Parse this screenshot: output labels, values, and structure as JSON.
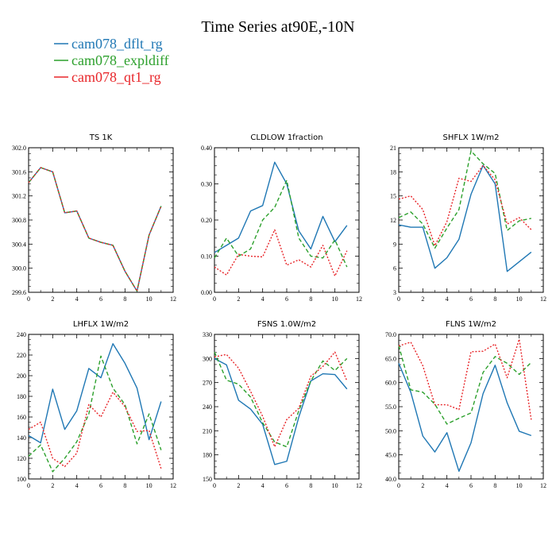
{
  "title": "Time Series at90E,-10N",
  "legend": [
    {
      "name": "cam078_dflt_rg",
      "color": "#1f77b4"
    },
    {
      "name": "cam078_expldiff",
      "color": "#2ca02c"
    },
    {
      "name": "cam078_qt1_rg",
      "color": "#e8262a"
    }
  ],
  "chart_data": [
    {
      "type": "line",
      "title": "TS   1K",
      "xlim": [
        0,
        12
      ],
      "ylim": [
        299.6,
        302.0
      ],
      "x_ticks": [
        0,
        2,
        4,
        6,
        8,
        10,
        12
      ],
      "y_ticks": [
        "299.6",
        "300.0",
        "300.4",
        "300.8",
        "301.2",
        "301.6",
        "302.0"
      ],
      "x": [
        0,
        1,
        2,
        3,
        4,
        5,
        6,
        7,
        8,
        9,
        10,
        11
      ],
      "series": [
        {
          "name": "cam078_dflt_rg",
          "dash": "solid",
          "values": [
            301.42,
            301.67,
            301.6,
            300.92,
            300.95,
            300.5,
            300.43,
            300.38,
            299.95,
            299.62,
            300.55,
            301.03
          ]
        },
        {
          "name": "cam078_expldiff",
          "dash": "dash",
          "values": [
            301.42,
            301.67,
            301.6,
            300.92,
            300.95,
            300.5,
            300.43,
            300.38,
            299.95,
            299.62,
            300.55,
            301.03
          ]
        },
        {
          "name": "cam078_qt1_rg",
          "dash": "dot",
          "values": [
            301.42,
            301.67,
            301.6,
            300.92,
            300.95,
            300.5,
            300.43,
            300.38,
            299.95,
            299.62,
            300.55,
            301.03
          ]
        }
      ]
    },
    {
      "type": "line",
      "title": "CLDLOW   1fraction",
      "xlim": [
        0,
        12
      ],
      "ylim": [
        0.0,
        0.4
      ],
      "x_ticks": [
        0,
        2,
        4,
        6,
        8,
        10,
        12
      ],
      "y_ticks": [
        "0.00",
        "0.10",
        "0.20",
        "0.30",
        "0.40"
      ],
      "x": [
        0,
        1,
        2,
        3,
        4,
        5,
        6,
        7,
        8,
        9,
        10,
        11
      ],
      "series": [
        {
          "name": "cam078_dflt_rg",
          "dash": "solid",
          "values": [
            0.11,
            0.13,
            0.15,
            0.225,
            0.24,
            0.36,
            0.3,
            0.17,
            0.12,
            0.21,
            0.14,
            0.185
          ]
        },
        {
          "name": "cam078_expldiff",
          "dash": "dash",
          "values": [
            0.095,
            0.15,
            0.1,
            0.12,
            0.2,
            0.235,
            0.31,
            0.15,
            0.1,
            0.095,
            0.145,
            0.07
          ]
        },
        {
          "name": "cam078_qt1_rg",
          "dash": "dot",
          "values": [
            0.07,
            0.048,
            0.105,
            0.1,
            0.098,
            0.173,
            0.075,
            0.09,
            0.07,
            0.13,
            0.045,
            0.115
          ]
        }
      ]
    },
    {
      "type": "line",
      "title": "SHFLX   1W/m2",
      "xlim": [
        0,
        12
      ],
      "ylim": [
        3,
        21
      ],
      "x_ticks": [
        0,
        2,
        4,
        6,
        8,
        10,
        12
      ],
      "y_ticks": [
        "3",
        "6",
        "9",
        "12",
        "15",
        "18",
        "21"
      ],
      "x": [
        0,
        1,
        2,
        3,
        4,
        5,
        6,
        7,
        8,
        9,
        10,
        11
      ],
      "series": [
        {
          "name": "cam078_dflt_rg",
          "dash": "solid",
          "values": [
            11.4,
            11.1,
            11.1,
            6.0,
            7.3,
            9.6,
            15.2,
            18.8,
            16.5,
            5.6,
            6.8,
            8.0
          ]
        },
        {
          "name": "cam078_expldiff",
          "dash": "dash",
          "values": [
            12.3,
            13.0,
            11.5,
            8.5,
            11.0,
            13.3,
            20.6,
            19.0,
            17.8,
            10.7,
            11.9,
            12.2
          ]
        },
        {
          "name": "cam078_qt1_rg",
          "dash": "dot",
          "values": [
            14.6,
            15.0,
            13.3,
            8.8,
            11.8,
            17.2,
            16.8,
            18.8,
            17.0,
            11.5,
            12.3,
            10.8
          ]
        }
      ]
    },
    {
      "type": "line",
      "title": "LHFLX   1W/m2",
      "xlim": [
        0,
        12
      ],
      "ylim": [
        100,
        240
      ],
      "x_ticks": [
        0,
        2,
        4,
        6,
        8,
        10,
        12
      ],
      "y_ticks": [
        "100",
        "120",
        "140",
        "160",
        "180",
        "200",
        "220",
        "240"
      ],
      "x": [
        0,
        1,
        2,
        3,
        4,
        5,
        6,
        7,
        8,
        9,
        10,
        11
      ],
      "series": [
        {
          "name": "cam078_dflt_rg",
          "dash": "solid",
          "values": [
            142,
            135,
            187,
            148,
            166,
            207,
            198,
            231,
            212,
            188,
            138,
            175
          ]
        },
        {
          "name": "cam078_expldiff",
          "dash": "dash",
          "values": [
            122,
            133,
            107,
            120,
            136,
            163,
            219,
            188,
            172,
            134,
            163,
            128
          ]
        },
        {
          "name": "cam078_qt1_rg",
          "dash": "dot",
          "values": [
            148,
            155,
            120,
            112,
            125,
            172,
            160,
            184,
            170,
            146,
            147,
            110
          ]
        }
      ]
    },
    {
      "type": "line",
      "title": "FSNS   1.0W/m2",
      "xlim": [
        0,
        12
      ],
      "ylim": [
        150,
        330
      ],
      "x_ticks": [
        0,
        2,
        4,
        6,
        8,
        10,
        12
      ],
      "y_ticks": [
        "150",
        "180",
        "210",
        "240",
        "270",
        "300",
        "330"
      ],
      "x": [
        0,
        1,
        2,
        3,
        4,
        5,
        6,
        7,
        8,
        9,
        10,
        11
      ],
      "series": [
        {
          "name": "cam078_dflt_rg",
          "dash": "solid",
          "values": [
            300,
            292,
            248,
            237,
            218,
            168,
            172,
            227,
            272,
            281,
            280,
            262
          ]
        },
        {
          "name": "cam078_expldiff",
          "dash": "dash",
          "values": [
            308,
            273,
            268,
            252,
            220,
            196,
            190,
            235,
            272,
            297,
            285,
            300
          ]
        },
        {
          "name": "cam078_qt1_rg",
          "dash": "dot",
          "values": [
            302,
            305,
            288,
            259,
            228,
            190,
            224,
            238,
            278,
            290,
            308,
            272
          ]
        }
      ]
    },
    {
      "type": "line",
      "title": "FLNS   1W/m2",
      "xlim": [
        0,
        12
      ],
      "ylim": [
        40,
        70
      ],
      "x_ticks": [
        0,
        2,
        4,
        6,
        8,
        10,
        12
      ],
      "y_ticks": [
        "40.0",
        "45.0",
        "50.0",
        "55.0",
        "60.0",
        "65.0",
        "70.0"
      ],
      "x": [
        0,
        1,
        2,
        3,
        4,
        5,
        6,
        7,
        8,
        9,
        10,
        11
      ],
      "series": [
        {
          "name": "cam078_dflt_rg",
          "dash": "solid",
          "values": [
            64.0,
            58.0,
            48.9,
            45.6,
            49.6,
            41.6,
            47.5,
            57.7,
            63.6,
            55.8,
            49.9,
            49.0
          ]
        },
        {
          "name": "cam078_expldiff",
          "dash": "dash",
          "values": [
            67.7,
            58.5,
            58.0,
            55.5,
            51.4,
            52.6,
            53.7,
            62.1,
            65.4,
            64.0,
            61.7,
            64.2
          ]
        },
        {
          "name": "cam078_qt1_rg",
          "dash": "dot",
          "values": [
            67.6,
            68.4,
            63.5,
            55.4,
            55.4,
            54.4,
            66.4,
            66.5,
            68.0,
            61.0,
            69.0,
            52.3
          ]
        }
      ]
    }
  ]
}
